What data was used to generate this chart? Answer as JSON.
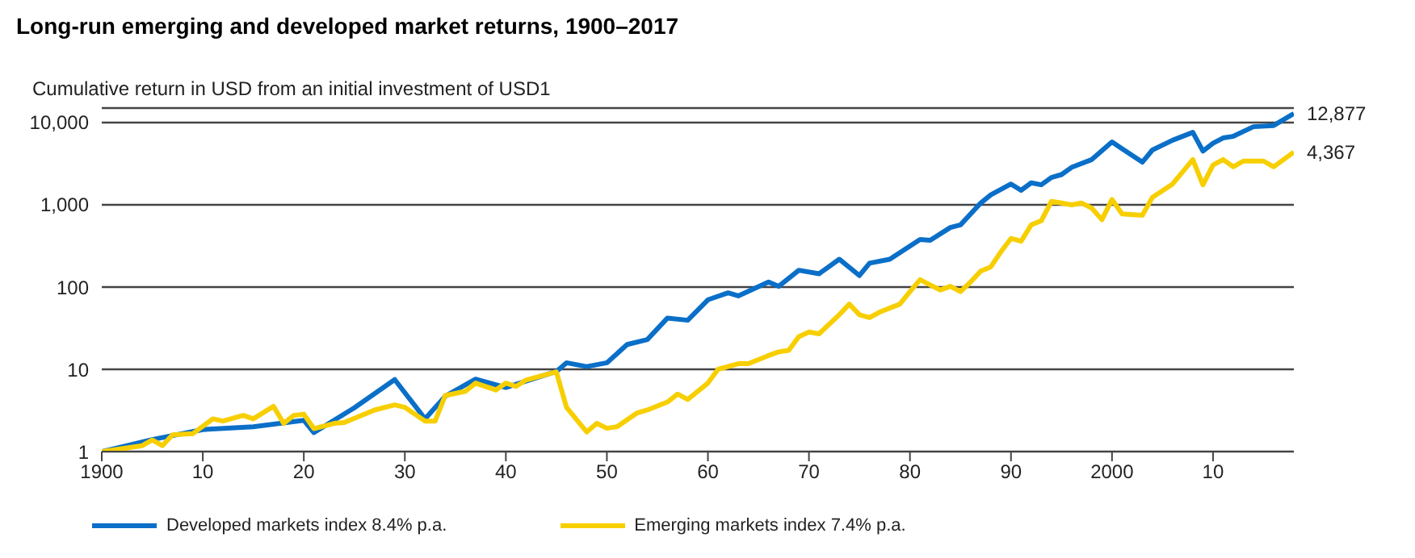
{
  "chart_data": {
    "type": "line",
    "title": "Long-run emerging and developed market returns, 1900–2017",
    "ylabel": "Cumulative return in USD from an initial investment of USD1",
    "log": "y",
    "grid": "y",
    "legend": "bottom",
    "line_style": "solid",
    "xlim": [
      1900,
      2018
    ],
    "xticks": [
      1900,
      {
        "value": 1910,
        "label": "10"
      },
      {
        "value": 1920,
        "label": "20"
      },
      {
        "value": 1930,
        "label": "30"
      },
      {
        "value": 1940,
        "label": "40"
      },
      {
        "value": 1950,
        "label": "50"
      },
      {
        "value": 1960,
        "label": "60"
      },
      {
        "value": 1970,
        "label": "70"
      },
      {
        "value": 1980,
        "label": "80"
      },
      {
        "value": 1990,
        "label": "90"
      },
      2000,
      {
        "value": 2010,
        "label": "10"
      }
    ],
    "ylim": [
      1,
      15000
    ],
    "yticks": [
      1,
      10,
      100,
      {
        "value": 1000,
        "label": "1,000"
      },
      {
        "value": 10000,
        "label": "10,000"
      }
    ],
    "series": [
      {
        "name": "Developed markets index 8.4% p.a.",
        "color": "#0a6fc8",
        "x": [
          1900,
          1905,
          1910,
          1915,
          1920,
          1921,
          1925,
          1929,
          1932,
          1934,
          1937,
          1940,
          1945,
          1946,
          1948,
          1950,
          1952,
          1954,
          1956,
          1958,
          1960,
          1962,
          1963,
          1966,
          1967,
          1969,
          1971,
          1973,
          1975,
          1976,
          1978,
          1981,
          1982,
          1984,
          1985,
          1987,
          1988,
          1990,
          1991,
          1992,
          1993,
          1994,
          1995,
          1996,
          1998,
          2000,
          2001,
          2003,
          2004,
          2006,
          2008,
          2009,
          2010,
          2011,
          2012,
          2014,
          2016,
          2018
        ],
        "values": [
          1,
          1.4,
          1.85,
          2,
          2.4,
          1.7,
          3.4,
          7.5,
          2.5,
          4.7,
          7.6,
          6,
          9.4,
          12,
          10.8,
          12,
          20,
          23,
          42,
          39.5,
          70,
          85,
          78,
          115,
          102,
          160,
          145,
          218,
          138,
          195,
          218,
          378,
          370,
          530,
          570,
          1050,
          1320,
          1790,
          1500,
          1850,
          1750,
          2150,
          2330,
          2850,
          3550,
          5800,
          4800,
          3300,
          4640,
          6100,
          7600,
          4500,
          5600,
          6500,
          6800,
          8900,
          9200,
          12877
        ]
      },
      {
        "name": "Emerging markets index 7.4% p.a.",
        "color": "#f7cf00",
        "x": [
          1900,
          1904,
          1905,
          1906,
          1907,
          1909,
          1911,
          1912,
          1914,
          1915,
          1917,
          1918,
          1919,
          1920,
          1921,
          1923,
          1924,
          1927,
          1929,
          1930,
          1932,
          1933,
          1934,
          1936,
          1937,
          1939,
          1940,
          1941,
          1942,
          1945,
          1946,
          1948,
          1949,
          1950,
          1951,
          1953,
          1954,
          1956,
          1957,
          1958,
          1960,
          1961,
          1963,
          1964,
          1966,
          1967,
          1968,
          1969,
          1970,
          1971,
          1973,
          1974,
          1975,
          1976,
          1977,
          1979,
          1980,
          1981,
          1982,
          1983,
          1984,
          1985,
          1986,
          1987,
          1988,
          1989,
          1990,
          1991,
          1992,
          1993,
          1994,
          1995,
          1996,
          1997,
          1998,
          1999,
          2000,
          2001,
          2003,
          2004,
          2006,
          2008,
          2009,
          2010,
          2011,
          2012,
          2013,
          2015,
          2016,
          2018
        ],
        "values": [
          1,
          1.18,
          1.38,
          1.18,
          1.6,
          1.65,
          2.5,
          2.35,
          2.75,
          2.5,
          3.55,
          2.2,
          2.75,
          2.85,
          1.9,
          2.2,
          2.25,
          3.2,
          3.7,
          3.45,
          2.35,
          2.35,
          4.8,
          5.4,
          6.8,
          5.6,
          6.8,
          6.2,
          7.4,
          9.3,
          3.45,
          1.73,
          2.2,
          1.92,
          2,
          2.95,
          3.2,
          4,
          5,
          4.3,
          6.8,
          10,
          11.7,
          11.7,
          14.7,
          16.3,
          17,
          25,
          28.4,
          27,
          46,
          62,
          46,
          42.5,
          49.6,
          62,
          88,
          123,
          106,
          92,
          102,
          88,
          115,
          156,
          176,
          268,
          390,
          360,
          570,
          640,
          1100,
          1050,
          1000,
          1050,
          910,
          660,
          1160,
          775,
          745,
          1230,
          1790,
          3550,
          1750,
          3050,
          3550,
          2900,
          3400,
          3400,
          2900,
          4367
        ]
      }
    ],
    "annotations": [
      {
        "text": "12,877",
        "x": 2018,
        "y": 12877
      },
      {
        "text": "4,367",
        "x": 2018,
        "y": 4367
      }
    ]
  }
}
